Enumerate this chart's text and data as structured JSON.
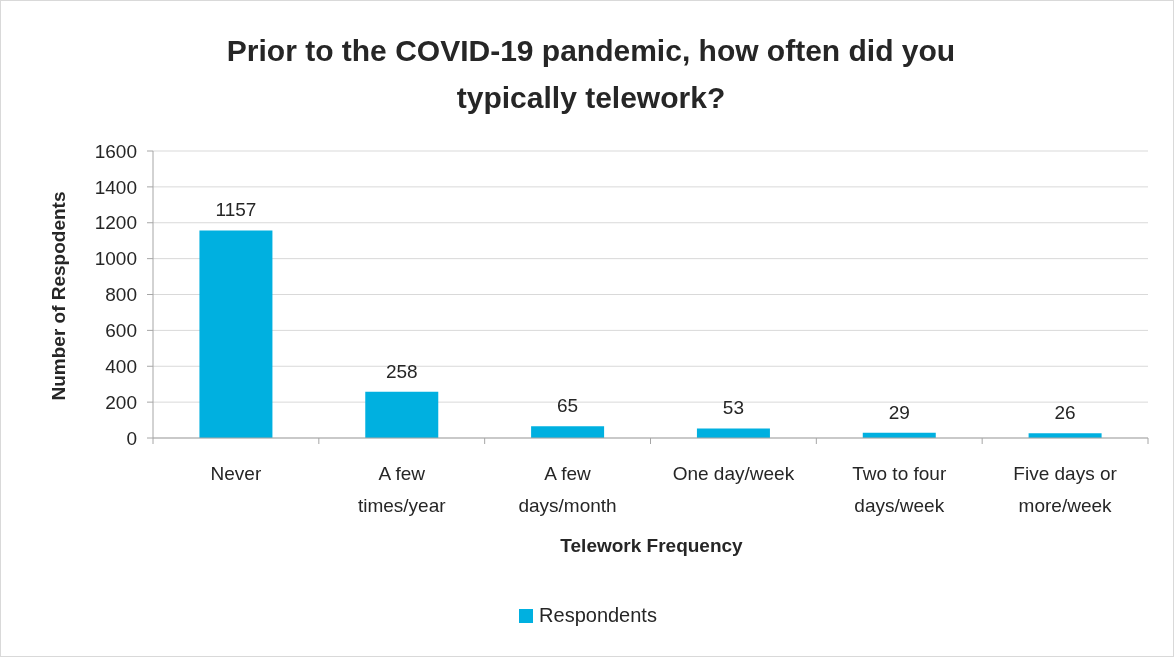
{
  "chart_data": {
    "type": "bar",
    "title": "Prior to the COVID-19 pandemic, how often did you typically telework?",
    "xlabel": "Telework Frequency",
    "ylabel": "Number of Respodents",
    "categories": [
      "Never",
      "A few times/year",
      "A few days/month",
      "One day/week",
      "Two to four days/week",
      "Five days or more/week"
    ],
    "series": [
      {
        "name": "Respondents",
        "color": "#00b0e0",
        "values": [
          1157,
          258,
          65,
          53,
          29,
          26
        ]
      }
    ],
    "ylim": [
      0,
      1600
    ],
    "yticks": [
      0,
      200,
      400,
      600,
      800,
      1000,
      1200,
      1400,
      1600
    ],
    "grid": "y",
    "legend": "bottom",
    "data_labels": true
  }
}
